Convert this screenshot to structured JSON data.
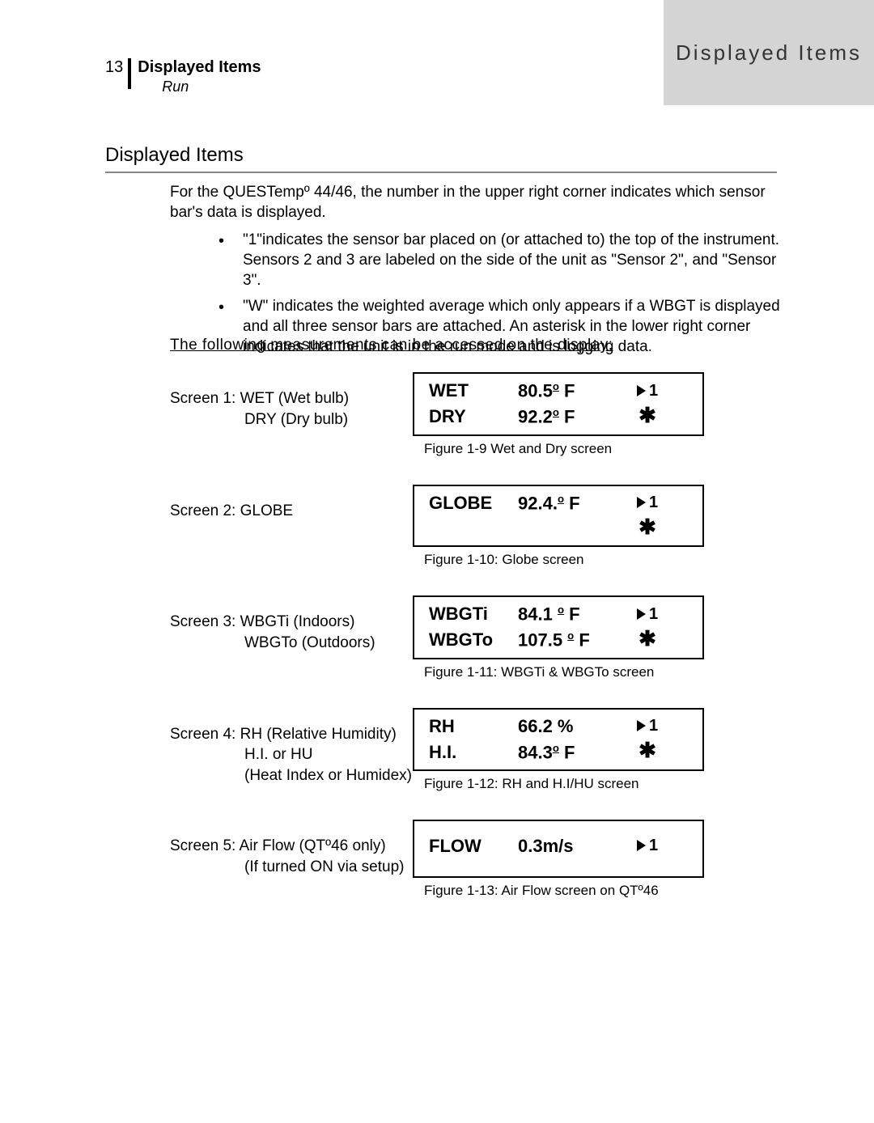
{
  "header_tab": "Displayed Items",
  "page_number": "13",
  "page_header_main": "Displayed Items",
  "page_header_sub": "Run",
  "section_title": "Displayed Items",
  "intro_text": "For the QUESTempº 44/46, the number in the upper right corner indicates which sensor bar's data is displayed.",
  "bullets": [
    "\"1\"indicates the sensor bar placed on (or attached to) the top of the instrument.  Sensors 2 and 3 are labeled on the side of the unit as \"Sensor 2\", and \"Sensor 3\".",
    "\"W\" indicates the weighted average which only appears if a WBGT is displayed and all three sensor bars are attached.  An asterisk in the lower right corner indicates that the unit is in the run mode and is logging data."
  ],
  "subheading": "The following measurements can be accessed on the display:",
  "screens": [
    {
      "label_lines": [
        "Screen 1:  WET (Wet bulb)",
        "DRY (Dry bulb)"
      ],
      "indent_from": 1,
      "box": [
        {
          "label": "WET",
          "value_num": "80.5",
          "value_unit": "F",
          "mark": "tri1"
        },
        {
          "label": "DRY",
          "value_num": "92.2",
          "value_unit": "F",
          "mark": "ast"
        }
      ],
      "caption": "Figure 1-9 Wet and Dry screen"
    },
    {
      "label_lines": [
        "Screen 2:  GLOBE"
      ],
      "indent_from": 99,
      "box": [
        {
          "label": "GLOBE",
          "value_num": "92.4.",
          "value_unit": "F",
          "mark": "tri1"
        },
        {
          "label": "",
          "value_num": "",
          "value_unit": "",
          "mark": "ast"
        }
      ],
      "caption": "Figure 1-10: Globe screen"
    },
    {
      "label_lines": [
        "Screen 3:  WBGTi   (Indoors)",
        "WBGTo (Outdoors)"
      ],
      "indent_from": 1,
      "box": [
        {
          "label": "WBGTi",
          "value_num": "84.1 ",
          "value_unit": "F",
          "mark": "tri1"
        },
        {
          "label": "WBGTo",
          "value_num": "107.5 ",
          "value_unit": "F",
          "mark": "ast"
        }
      ],
      "caption": "Figure 1-11: WBGTi & WBGTo screen"
    },
    {
      "label_lines": [
        "Screen 4:  RH (Relative Humidity)",
        "H.I. or HU",
        "(Heat Index or Humidex)"
      ],
      "indent_from": 1,
      "box": [
        {
          "label": "RH",
          "value_num": "66.2",
          "value_unit_plain": " %",
          "mark": "tri1"
        },
        {
          "label": "H.I.",
          "value_num": "84.3",
          "value_unit": "F",
          "mark": "ast"
        }
      ],
      "caption": "Figure 1-12:  RH and H.I/HU screen"
    },
    {
      "label_lines": [
        "Screen 5:  Air Flow (QTº46 only)",
        "(If turned ON via setup)"
      ],
      "indent_from": 1,
      "box": [
        {
          "label": "FLOW",
          "value_num": "0.3m/s",
          "value_unit_plain": "",
          "mark": "tri1"
        },
        {
          "label": "",
          "value_num": "",
          "value_unit": "",
          "mark": ""
        }
      ],
      "caption": "Figure 1-13:  Air Flow screen on QTº46"
    }
  ],
  "colors": {
    "tab_bg": "#d4d4d4",
    "text": "#000000",
    "hr": "#888888"
  }
}
